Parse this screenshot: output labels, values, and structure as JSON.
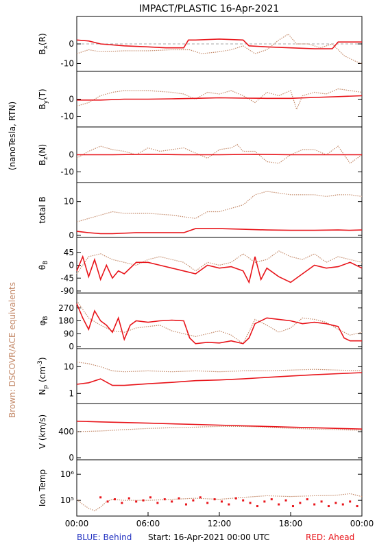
{
  "title": "IMPACT/PLASTIC   16-Apr-2021",
  "left_label_units": "(nanoTesla, RTN)",
  "left_label_brown": "Brown: DSCOVR/ACE equivalents",
  "footer": {
    "blue": "BLUE: Behind",
    "start": "Start: 16-Apr-2021 00:00 UTC",
    "red": "RED: Ahead"
  },
  "x_ticks": [
    "00:00",
    "06:00",
    "12:00",
    "18:00",
    "00:00"
  ],
  "colors": {
    "ahead": "#e8141a",
    "dscovr": "#c48a6a",
    "behind": "#2030c0",
    "frame": "#000000"
  },
  "chart_data": [
    {
      "type": "line",
      "id": "bx",
      "ylabel": "Bx(R)",
      "ylim": [
        -13,
        13
      ],
      "ticks": [
        0,
        -10
      ],
      "zero_line": true,
      "series": [
        {
          "name": "RED: Ahead",
          "color": "ahead",
          "x": [
            0,
            1,
            2,
            4,
            6,
            7.5,
            9,
            9.4,
            10,
            12,
            14,
            14.5,
            16,
            18,
            20,
            21.5,
            22,
            23,
            24
          ],
          "y": [
            2,
            1.5,
            0,
            -1,
            -1.5,
            -2,
            -2,
            2,
            2,
            2.5,
            2,
            -1,
            -1.5,
            -2,
            -2.5,
            -2.5,
            1,
            1,
            1
          ]
        },
        {
          "name": "Brown: DSCOVR/ACE equivalents",
          "color": "dscovr",
          "x": [
            0,
            1,
            2,
            4,
            6,
            8,
            9.5,
            10.5,
            12,
            13,
            14,
            15,
            16,
            17,
            17.8,
            18.5,
            19.5,
            20.5,
            21.5,
            22.5,
            23.5,
            24
          ],
          "y": [
            -5,
            -3,
            -4,
            -3.5,
            -3.5,
            -3,
            -3,
            -5,
            -4,
            -3,
            -1,
            -5,
            -3,
            2,
            5,
            0,
            0,
            -2,
            0,
            -6,
            -9,
            -10
          ]
        }
      ]
    },
    {
      "type": "line",
      "id": "by",
      "ylabel": "By(T)",
      "ylim": [
        -15,
        15
      ],
      "ticks": [
        0,
        -10
      ],
      "zero_line": false,
      "series": [
        {
          "name": "RED: Ahead",
          "color": "ahead",
          "x": [
            0,
            2,
            4,
            6,
            8,
            10,
            12,
            14,
            16,
            18,
            20,
            22,
            24
          ],
          "y": [
            -0.5,
            -0.5,
            0,
            0,
            0.2,
            0.5,
            0.8,
            0.6,
            0.5,
            0.5,
            1,
            1.5,
            2
          ]
        },
        {
          "name": "Brown: DSCOVR/ACE equivalents",
          "color": "dscovr",
          "x": [
            0,
            1,
            2,
            3,
            4,
            6,
            8,
            9,
            10,
            11,
            12,
            13,
            14,
            15,
            16,
            17,
            18,
            18.5,
            19,
            20,
            21,
            22,
            23,
            24
          ],
          "y": [
            -4,
            -2,
            2,
            4,
            5,
            5,
            4,
            3,
            0,
            4,
            3,
            5,
            2,
            -2,
            4,
            2,
            5,
            -6,
            2,
            4,
            3,
            6,
            5,
            4
          ]
        }
      ]
    },
    {
      "type": "line",
      "id": "bz",
      "ylabel": "Bz(N)",
      "ylim": [
        -15,
        15
      ],
      "ticks": [
        0,
        -10
      ],
      "zero_line": false,
      "series": [
        {
          "name": "RED: Ahead",
          "color": "ahead",
          "x": [
            0,
            3,
            6,
            9,
            12,
            15,
            18,
            21,
            24
          ],
          "y": [
            0,
            0,
            0.3,
            0,
            0,
            0.3,
            0,
            0,
            0
          ]
        },
        {
          "name": "Brown: DSCOVR/ACE equivalents",
          "color": "dscovr",
          "x": [
            0,
            1,
            2,
            3,
            4,
            5,
            6,
            7,
            8,
            9,
            10,
            11,
            12,
            13,
            13.5,
            14,
            15,
            16,
            17,
            18,
            19,
            20,
            21,
            22,
            23,
            24
          ],
          "y": [
            -2,
            2,
            5,
            3,
            2,
            0,
            4,
            2,
            3,
            4,
            1,
            -2,
            3,
            4,
            6,
            2,
            2,
            -4,
            -5,
            0,
            3,
            3,
            0,
            5,
            -5,
            0
          ]
        }
      ]
    },
    {
      "type": "line",
      "id": "btot",
      "ylabel": "total B",
      "ylim": [
        0,
        15
      ],
      "ticks": [
        10,
        0
      ],
      "zero_line": false,
      "series": [
        {
          "name": "RED: Ahead",
          "color": "ahead",
          "x": [
            0,
            1,
            2,
            3,
            5,
            7,
            9,
            10,
            12,
            14,
            16,
            18,
            20,
            22,
            23,
            24
          ],
          "y": [
            1.2,
            0.8,
            0.5,
            0.5,
            0.8,
            0.8,
            0.8,
            2,
            2,
            1.8,
            1.6,
            1.5,
            1.5,
            1.6,
            1.5,
            1.6
          ]
        },
        {
          "name": "Brown: DSCOVR/ACE equivalents",
          "color": "dscovr",
          "x": [
            0,
            1,
            2,
            3,
            4,
            6,
            8,
            9,
            10,
            11,
            12,
            13,
            14,
            15,
            16,
            17,
            18,
            19,
            20,
            21,
            22,
            23,
            24
          ],
          "y": [
            4,
            5,
            6,
            7,
            6.5,
            6.5,
            6,
            5.5,
            5,
            7,
            7,
            8,
            9,
            12,
            13,
            12.5,
            12,
            12,
            12,
            11.5,
            12,
            12,
            11.5
          ]
        }
      ]
    },
    {
      "type": "line",
      "id": "theta",
      "ylabel": "θB",
      "ylim": [
        -90,
        90
      ],
      "ticks": [
        45,
        0,
        -45,
        -90
      ],
      "zero_line": false,
      "series": [
        {
          "name": "RED: Ahead",
          "color": "ahead",
          "x": [
            0,
            0.5,
            1,
            1.5,
            2,
            2.5,
            3,
            3.5,
            4,
            5,
            6,
            7,
            8,
            9,
            10,
            11,
            12,
            13,
            14,
            14.5,
            15,
            15.5,
            16,
            17,
            18,
            19,
            20,
            21,
            22,
            23,
            24
          ],
          "y": [
            -20,
            30,
            -40,
            20,
            -50,
            0,
            -45,
            -20,
            -30,
            10,
            10,
            0,
            -10,
            -20,
            -30,
            0,
            -10,
            -5,
            -20,
            -60,
            30,
            -50,
            -10,
            -40,
            -60,
            -30,
            0,
            -10,
            -5,
            10,
            -10
          ]
        },
        {
          "name": "Brown: DSCOVR/ACE equivalents",
          "color": "dscovr",
          "x": [
            0,
            1,
            2,
            3,
            4,
            5,
            6,
            7,
            8,
            9,
            10,
            11,
            12,
            13,
            14,
            15,
            16,
            17,
            18,
            19,
            20,
            21,
            22,
            23,
            24
          ],
          "y": [
            -30,
            30,
            40,
            20,
            10,
            0,
            20,
            30,
            20,
            10,
            -20,
            10,
            0,
            10,
            40,
            10,
            20,
            50,
            30,
            20,
            40,
            10,
            30,
            20,
            10
          ]
        }
      ]
    },
    {
      "type": "line",
      "id": "phi",
      "ylabel": "φB",
      "ylim": [
        0,
        360
      ],
      "ticks": [
        270,
        180,
        90,
        0
      ],
      "zero_line": false,
      "series": [
        {
          "name": "RED: Ahead",
          "color": "ahead",
          "x": [
            0,
            0.5,
            1,
            1.5,
            2,
            2.5,
            3,
            3.5,
            4,
            4.5,
            5,
            6,
            7,
            8,
            9,
            9.5,
            10,
            11,
            12,
            13,
            14,
            14.5,
            15,
            16,
            17,
            18,
            19,
            20,
            21,
            22,
            22.5,
            23,
            24
          ],
          "y": [
            300,
            200,
            120,
            250,
            180,
            150,
            100,
            200,
            50,
            150,
            180,
            170,
            180,
            185,
            180,
            60,
            20,
            30,
            25,
            40,
            20,
            60,
            160,
            200,
            190,
            180,
            160,
            170,
            160,
            140,
            60,
            40,
            40
          ]
        },
        {
          "name": "Brown: DSCOVR/ACE equivalents",
          "color": "dscovr",
          "x": [
            0,
            1,
            2,
            3,
            4,
            5,
            6,
            7,
            8,
            9,
            10,
            11,
            12,
            13,
            14,
            15,
            16,
            17,
            18,
            19,
            20,
            21,
            22,
            23,
            24
          ],
          "y": [
            320,
            200,
            150,
            110,
            100,
            130,
            140,
            150,
            110,
            90,
            70,
            90,
            110,
            80,
            20,
            190,
            150,
            100,
            130,
            200,
            190,
            170,
            120,
            80,
            100
          ]
        }
      ]
    },
    {
      "type": "line",
      "id": "np",
      "ylabel": "Np (cm-3)",
      "yscale": "log",
      "ylim": [
        0.5,
        40
      ],
      "ticks": [
        10,
        1
      ],
      "zero_line": false,
      "series": [
        {
          "name": "RED: Ahead",
          "color": "ahead",
          "x": [
            0,
            1,
            2,
            3,
            4,
            6,
            8,
            10,
            12,
            14,
            16,
            18,
            20,
            22,
            24
          ],
          "y": [
            2.2,
            2.5,
            3.5,
            2,
            2,
            2.3,
            2.6,
            3,
            3.2,
            3.5,
            4,
            4.5,
            5,
            5.5,
            6
          ]
        },
        {
          "name": "Brown: DSCOVR/ACE equivalents",
          "color": "dscovr",
          "x": [
            0,
            1,
            2,
            3,
            4,
            6,
            8,
            10,
            12,
            14,
            16,
            18,
            20,
            22,
            24
          ],
          "y": [
            15,
            13,
            10,
            7,
            6.5,
            7,
            6.5,
            7,
            6.5,
            7,
            7,
            7.5,
            8,
            7.5,
            7
          ]
        }
      ]
    },
    {
      "type": "line",
      "id": "v",
      "ylabel": "V (km/s)",
      "ylim": [
        0,
        800
      ],
      "ticks": [
        400,
        0
      ],
      "zero_line": false,
      "series": [
        {
          "name": "RED: Ahead",
          "color": "ahead",
          "x": [
            0,
            2,
            4,
            6,
            8,
            10,
            12,
            14,
            16,
            18,
            20,
            22,
            24
          ],
          "y": [
            560,
            550,
            540,
            530,
            520,
            510,
            500,
            490,
            480,
            470,
            460,
            450,
            440
          ]
        },
        {
          "name": "Brown: DSCOVR/ACE equivalents",
          "color": "dscovr",
          "x": [
            0,
            2,
            4,
            6,
            8,
            10,
            12,
            14,
            16,
            18,
            20,
            22,
            24
          ],
          "y": [
            400,
            410,
            430,
            450,
            460,
            470,
            480,
            480,
            470,
            450,
            440,
            430,
            420
          ]
        }
      ]
    },
    {
      "type": "scatter",
      "id": "temp",
      "ylabel": "Ion Temp",
      "yscale": "log",
      "ylim": [
        30000,
        3000000
      ],
      "tick_labels": [
        "10⁶",
        "10⁵"
      ],
      "tick_values": [
        1000000,
        100000
      ],
      "zero_line": false,
      "series": [
        {
          "name": "RED: Ahead",
          "color": "ahead",
          "mode": "points",
          "x": [
            2,
            2.6,
            3.2,
            3.8,
            4.4,
            5,
            5.6,
            6.2,
            6.8,
            7.4,
            8,
            8.6,
            9.2,
            9.8,
            10.4,
            11,
            11.6,
            12.2,
            12.8,
            13.4,
            14,
            14.6,
            15.2,
            15.8,
            16.4,
            17,
            17.6,
            18.2,
            18.8,
            19.4,
            20,
            20.6,
            21.2,
            21.8,
            22.4,
            23,
            23.6
          ],
          "y": [
            130000,
            90000,
            110000,
            80000,
            120000,
            90000,
            100000,
            130000,
            80000,
            110000,
            90000,
            120000,
            70000,
            100000,
            130000,
            80000,
            110000,
            90000,
            70000,
            120000,
            100000,
            80000,
            60000,
            90000,
            110000,
            70000,
            100000,
            60000,
            80000,
            110000,
            70000,
            90000,
            60000,
            80000,
            70000,
            90000,
            60000
          ]
        },
        {
          "name": "Brown: DSCOVR/ACE equivalents",
          "color": "dscovr",
          "mode": "line",
          "x": [
            0,
            0.5,
            1,
            1.5,
            2,
            2.5,
            3,
            4,
            6,
            8,
            10,
            12,
            14,
            16,
            18,
            20,
            22,
            23,
            24
          ],
          "y": [
            110000,
            70000,
            50000,
            40000,
            55000,
            90000,
            110000,
            100000,
            100000,
            110000,
            120000,
            110000,
            130000,
            150000,
            140000,
            150000,
            160000,
            180000,
            140000
          ]
        }
      ]
    }
  ]
}
